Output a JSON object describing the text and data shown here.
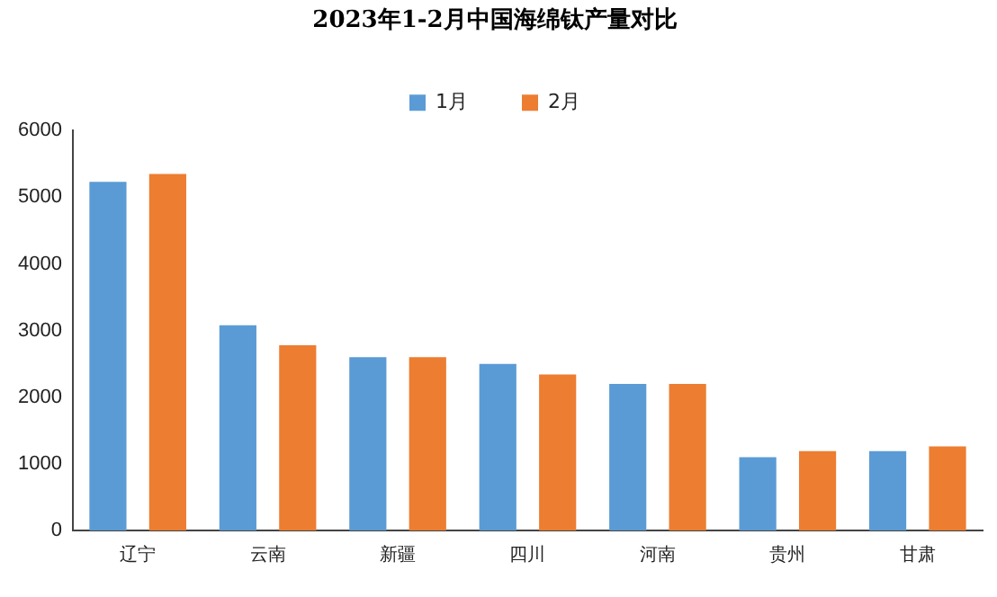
{
  "chart_data": {
    "type": "bar",
    "title": "2023年1-2月中国海绵钛产量对比",
    "categories": [
      "辽宁",
      "云南",
      "新疆",
      "四川",
      "河南",
      "贵州",
      "甘肃"
    ],
    "series": [
      {
        "name": "1月",
        "color": "#5b9bd5",
        "values": [
          5230,
          3080,
          2600,
          2500,
          2200,
          1100,
          1190
        ]
      },
      {
        "name": "2月",
        "color": "#ed7d31",
        "values": [
          5350,
          2780,
          2600,
          2340,
          2200,
          1190,
          1260
        ]
      }
    ],
    "ylim": [
      0,
      6000
    ],
    "yticks": [
      0,
      1000,
      2000,
      3000,
      4000,
      5000,
      6000
    ],
    "grid": false,
    "legend": "top"
  }
}
